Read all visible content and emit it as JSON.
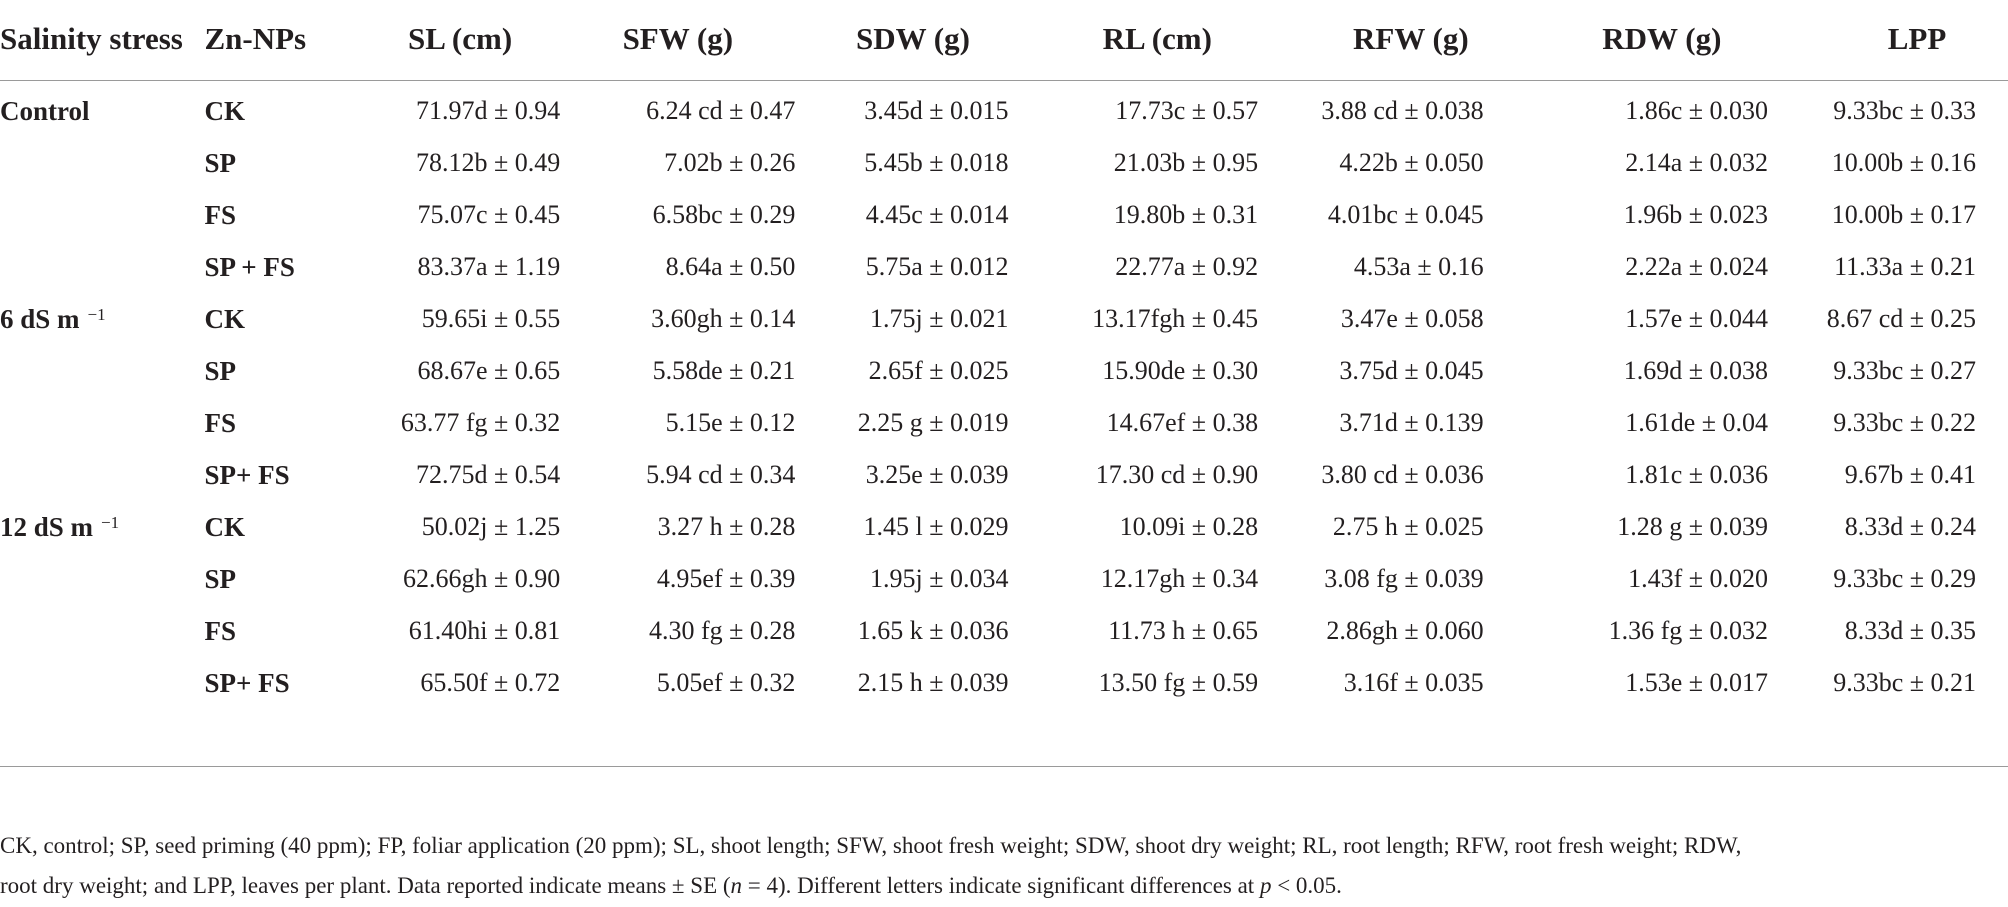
{
  "table": {
    "headers": [
      "Salinity stress",
      "Zn-NPs",
      "SL (cm)",
      "SFW (g)",
      "SDW (g)",
      "RL (cm)",
      "RFW (g)",
      "RDW (g)",
      "LPP"
    ],
    "groups": [
      {
        "label": "Control",
        "unit_sup": "",
        "rows": [
          {
            "treatment": "CK",
            "values": [
              "71.97d ± 0.94",
              "6.24 cd ± 0.47",
              "3.45d ± 0.015",
              "17.73c ± 0.57",
              "3.88 cd ± 0.038",
              "1.86c ± 0.030",
              "9.33bc ± 0.33"
            ]
          },
          {
            "treatment": "SP",
            "values": [
              "78.12b ± 0.49",
              "7.02b ± 0.26",
              "5.45b ± 0.018",
              "21.03b ± 0.95",
              "4.22b ± 0.050",
              "2.14a ± 0.032",
              "10.00b ± 0.16"
            ]
          },
          {
            "treatment": "FS",
            "values": [
              "75.07c ± 0.45",
              "6.58bc ± 0.29",
              "4.45c ± 0.014",
              "19.80b ± 0.31",
              "4.01bc ± 0.045",
              "1.96b ± 0.023",
              "10.00b ± 0.17"
            ]
          },
          {
            "treatment": "SP + FS",
            "values": [
              "83.37a ± 1.19",
              "8.64a ± 0.50",
              "5.75a ± 0.012",
              "22.77a ± 0.92",
              "4.53a ± 0.16",
              "2.22a ± 0.024",
              "11.33a ± 0.21"
            ]
          }
        ]
      },
      {
        "label": "6 dS m",
        "unit_sup": "−1",
        "rows": [
          {
            "treatment": "CK",
            "values": [
              "59.65i ± 0.55",
              "3.60gh ± 0.14",
              "1.75j ± 0.021",
              "13.17fgh ± 0.45",
              "3.47e ± 0.058",
              "1.57e ± 0.044",
              "8.67 cd ± 0.25"
            ]
          },
          {
            "treatment": "SP",
            "values": [
              "68.67e ± 0.65",
              "5.58de ± 0.21",
              "2.65f ± 0.025",
              "15.90de ± 0.30",
              "3.75d ± 0.045",
              "1.69d ± 0.038",
              "9.33bc ± 0.27"
            ]
          },
          {
            "treatment": "FS",
            "values": [
              "63.77 fg ± 0.32",
              "5.15e ± 0.12",
              "2.25 g ± 0.019",
              "14.67ef ± 0.38",
              "3.71d ± 0.139",
              "1.61de ± 0.04",
              "9.33bc ± 0.22"
            ]
          },
          {
            "treatment": "SP+ FS",
            "values": [
              "72.75d ± 0.54",
              "5.94 cd ± 0.34",
              "3.25e ± 0.039",
              "17.30 cd ± 0.90",
              "3.80 cd ± 0.036",
              "1.81c ± 0.036",
              "9.67b ± 0.41"
            ]
          }
        ]
      },
      {
        "label": "12 dS m",
        "unit_sup": "−1",
        "rows": [
          {
            "treatment": "CK",
            "values": [
              "50.02j ± 1.25",
              "3.27 h ± 0.28",
              "1.45 l ± 0.029",
              "10.09i ± 0.28",
              "2.75 h ± 0.025",
              "1.28 g ± 0.039",
              "8.33d ± 0.24"
            ]
          },
          {
            "treatment": "SP",
            "values": [
              "62.66gh ± 0.90",
              "4.95ef ± 0.39",
              "1.95j ± 0.034",
              "12.17gh ± 0.34",
              "3.08 fg ± 0.039",
              "1.43f ± 0.020",
              "9.33bc ± 0.29"
            ]
          },
          {
            "treatment": "FS",
            "values": [
              "61.40hi ± 0.81",
              "4.30 fg ± 0.28",
              "1.65 k ± 0.036",
              "11.73 h ± 0.65",
              "2.86gh ± 0.060",
              "1.36 fg ± 0.032",
              "8.33d ± 0.35"
            ]
          },
          {
            "treatment": "SP+ FS",
            "values": [
              "65.50f ± 0.72",
              "5.05ef ± 0.32",
              "2.15 h ± 0.039",
              "13.50 fg ± 0.59",
              "3.16f ± 0.035",
              "1.53e ± 0.017",
              "9.33bc ± 0.21"
            ]
          }
        ]
      }
    ]
  },
  "footnote": {
    "line1": "CK, control; SP, seed priming (40 ppm); FP, foliar application (20 ppm); SL, shoot length; SFW, shoot fresh weight; SDW, shoot dry weight; RL, root length; RFW, root fresh weight; RDW,",
    "line2_a": "root dry weight; and LPP, leaves per plant. Data reported indicate means ± SE (",
    "line2_n": "n",
    "line2_b": " = 4). Different letters indicate significant differences at ",
    "line2_p": "p",
    "line2_c": " < 0.05."
  }
}
